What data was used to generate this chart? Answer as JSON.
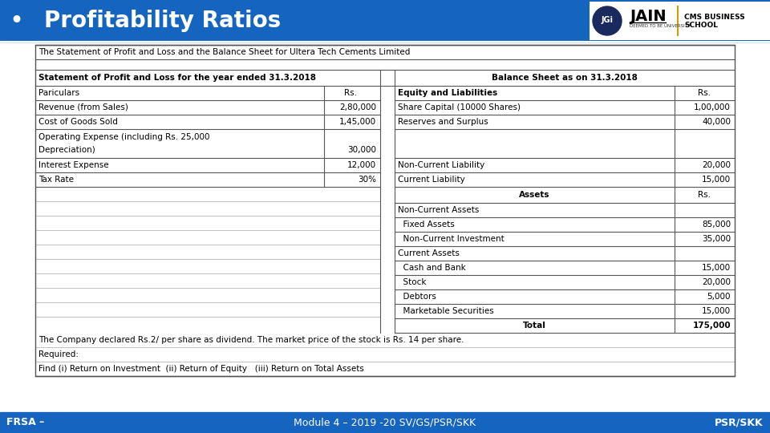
{
  "title": "Profitability Ratios",
  "header_bg": "#1565C0",
  "header_text_color": "#FFFFFF",
  "bullet": "•",
  "footer_left": "FRSA –",
  "footer_middle": "Module 4 – 2019 -20 SV/GS/PSR/SKK",
  "footer_right": "PSR/SKK",
  "footer_bg": "#1565C0",
  "footer_text_color": "#FFFFFF",
  "table_title": "The Statement of Profit and Loss and the Balance Sheet for Ultera Tech Cements Limited",
  "pl_header": "Statement of Profit and Loss for the year ended 31.3.2018",
  "bs_header": "Balance Sheet as on 31.3.2018",
  "bs_eq_header": "Equity and Liabilities",
  "note1": "The Company declared Rs.2/ per share as dividend. The market price of the stock is Rs. 14 per share.",
  "note2": "Required:",
  "note3": "Find (i) Return on Investment  (ii) Return of Equity   (iii) Return on Total Assets",
  "bg_color": "#FFFFFF",
  "text_color": "#000000",
  "header_text_dark": "#1a1a1a",
  "table_line_color": "#555555",
  "table_line_color_light": "#aaaaaa"
}
